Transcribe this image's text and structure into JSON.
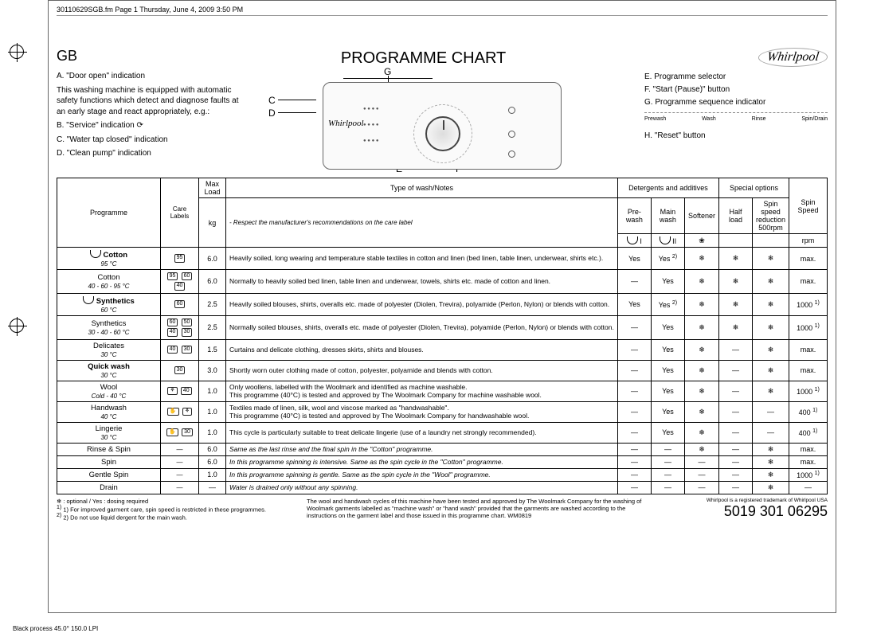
{
  "header_line": "30110629SGB.fm  Page 1  Thursday, June 4, 2009  3:50 PM",
  "gb": "GB",
  "title": "PROGRAMME CHART",
  "brand": "Whirlpool",
  "legend_left": {
    "A": "A. \"Door open\" indication",
    "A_sub": "This washing machine is equipped with automatic safety functions which detect and diagnose faults at an early stage and react appropriately, e.g.:",
    "B": "B. \"Service\" indication",
    "C": "C. \"Water tap closed\" indication",
    "D": "D. \"Clean pump\" indication"
  },
  "callouts": {
    "A": "A",
    "B": "B",
    "C": "C",
    "D": "D",
    "E": "E",
    "F": "F",
    "G": "G",
    "H": "H"
  },
  "legend_right": {
    "E": "E. Programme selector",
    "F": "F. \"Start (Pause)\" button",
    "G": "G. Programme sequence indicator",
    "H": "H. \"Reset\" button",
    "seq": [
      "Prewash",
      "Wash",
      "Rinse",
      "Spin/Drain"
    ]
  },
  "table": {
    "head": {
      "programme": "Programme",
      "care": "Care Labels",
      "load_top": "Max Load",
      "load_unit": "kg",
      "type": "Type of wash/Notes",
      "type_sub": "- Respect the manufacturer's recommendations on the care label",
      "detergents": "Detergents and additives",
      "special": "Special options",
      "spin": "Spin Speed",
      "spin_unit": "rpm",
      "prewash": "Pre-wash",
      "mainwash": "Main wash",
      "softener": "Softener",
      "halfload": "Half load",
      "spinred": "Spin speed reduction 500rpm"
    },
    "rows": [
      {
        "prog": "Cotton",
        "temp": "95 °C",
        "bold": true,
        "icon": "cup",
        "care": [
          "95"
        ],
        "load": "6.0",
        "notes": "Heavily soiled, long wearing and temperature stable textiles in cotton and linen (bed linen, table linen, underwear, shirts etc.).",
        "pre": "Yes",
        "main": "Yes 2)",
        "soft": "❄",
        "half": "❄",
        "red": "❄",
        "spin": "max."
      },
      {
        "prog": "Cotton",
        "temp": "40 - 60 - 95 °C",
        "bold": false,
        "care": [
          "95",
          "60",
          "40"
        ],
        "load": "6.0",
        "notes": "Normally to heavily soiled bed linen, table linen and underwear, towels, shirts etc. made of cotton and linen.",
        "pre": "—",
        "main": "Yes",
        "soft": "❄",
        "half": "❄",
        "red": "❄",
        "spin": "max."
      },
      {
        "prog": "Synthetics",
        "temp": "60 °C",
        "bold": true,
        "icon": "cup",
        "care": [
          "60"
        ],
        "load": "2.5",
        "notes": "Heavily soiled blouses, shirts, overalls etc. made of polyester (Diolen, Trevira), polyamide (Perlon, Nylon) or blends with cotton.",
        "pre": "Yes",
        "main": "Yes 2)",
        "soft": "❄",
        "half": "❄",
        "red": "❄",
        "spin": "1000 1)"
      },
      {
        "prog": "Synthetics",
        "temp": "30 - 40 - 60 °C",
        "bold": false,
        "care": [
          "60",
          "50",
          "40",
          "30"
        ],
        "load": "2.5",
        "notes": "Normally soiled blouses, shirts, overalls etc. made of polyester (Diolen, Trevira), polyamide (Perlon, Nylon) or blends with cotton.",
        "pre": "—",
        "main": "Yes",
        "soft": "❄",
        "half": "❄",
        "red": "❄",
        "spin": "1000 1)"
      },
      {
        "prog": "Delicates",
        "temp": "30 °C",
        "bold": false,
        "care": [
          "40",
          "30"
        ],
        "load": "1.5",
        "notes": "Curtains and delicate clothing, dresses skirts, shirts and blouses.",
        "pre": "—",
        "main": "Yes",
        "soft": "❄",
        "half": "—",
        "red": "❄",
        "spin": "max."
      },
      {
        "prog": "Quick wash",
        "temp": "30 °C",
        "bold": true,
        "care": [
          "30"
        ],
        "load": "3.0",
        "notes": "Shortly worn outer clothing made of cotton, polyester, polyamide and blends with cotton.",
        "pre": "—",
        "main": "Yes",
        "soft": "❄",
        "half": "—",
        "red": "❄",
        "spin": "max."
      },
      {
        "prog": "Wool",
        "temp": "Cold - 40 °C",
        "bold": false,
        "care": [
          "⚘",
          "40"
        ],
        "load": "1.0",
        "notes": "Only woollens, labelled with the Woolmark and identified as machine washable.\nThis programme (40°C) is tested and approved by The Woolmark Company for machine washable wool.",
        "pre": "—",
        "main": "Yes",
        "soft": "❄",
        "half": "—",
        "red": "❄",
        "spin": "1000 1)"
      },
      {
        "prog": "Handwash",
        "temp": "40 °C",
        "bold": false,
        "care": [
          "✋",
          "⚘"
        ],
        "load": "1.0",
        "notes": "Textiles made of linen, silk, wool and viscose marked as \"handwashable\".\nThis programme (40°C) is tested and approved by The Woolmark Company for handwashable wool.",
        "pre": "—",
        "main": "Yes",
        "soft": "❄",
        "half": "—",
        "red": "—",
        "spin": "400 1)"
      },
      {
        "prog": "Lingerie",
        "temp": "30 °C",
        "bold": false,
        "care": [
          "✋",
          "30"
        ],
        "load": "1.0",
        "notes": "This cycle is particularly suitable to treat delicate lingerie (use of a laundry net strongly recommended).",
        "pre": "—",
        "main": "Yes",
        "soft": "❄",
        "half": "—",
        "red": "—",
        "spin": "400 1)"
      },
      {
        "prog": "Rinse & Spin",
        "temp": "",
        "bold": false,
        "care": [
          "—"
        ],
        "load": "6.0",
        "notes": "Same as the last rinse and the final spin in the \"Cotton\" programme.",
        "ital": true,
        "pre": "—",
        "main": "—",
        "soft": "❄",
        "half": "—",
        "red": "❄",
        "spin": "max."
      },
      {
        "prog": "Spin",
        "temp": "",
        "bold": false,
        "care": [
          "—"
        ],
        "load": "6.0",
        "notes": "In this programme spinning is intensive. Same as the spin cycle in the \"Cotton\" programme.",
        "ital": true,
        "pre": "—",
        "main": "—",
        "soft": "—",
        "half": "—",
        "red": "❄",
        "spin": "max."
      },
      {
        "prog": "Gentle Spin",
        "temp": "",
        "bold": false,
        "care": [
          "—"
        ],
        "load": "1.0",
        "notes": "In this programme spinning is gentle. Same as the spin cycle in the \"Wool\" programme.",
        "ital": true,
        "pre": "—",
        "main": "—",
        "soft": "—",
        "half": "—",
        "red": "❄",
        "spin": "1000 1)"
      },
      {
        "prog": "Drain",
        "temp": "",
        "bold": false,
        "care": [
          "—"
        ],
        "load": "—",
        "notes": "Water is drained only without any spinning.",
        "ital": true,
        "pre": "—",
        "main": "—",
        "soft": "—",
        "half": "—",
        "red": "❄",
        "spin": "—"
      }
    ]
  },
  "footnotes": {
    "left1": "❄ : optional / Yes : dosing required",
    "left2": "1) For improved garment care, spin speed is restricted in these programmes.",
    "left3": "2) Do not use liquid dergent for the main wash.",
    "mid": "The wool and handwash cycles of this machine have been tested and approved by The Woolmark Company for the washing of Woolmark garments labelled as \"machine wash\" or \"hand wash\" provided that the garments are washed according to the instructions on the garment label and those issued in this programme chart. WM0819",
    "right1": "Whirlpool is a registered trademark of Whirlpool USA",
    "partno": "5019 301 06295"
  },
  "bottom": "Black process 45.0° 150.0 LPI"
}
